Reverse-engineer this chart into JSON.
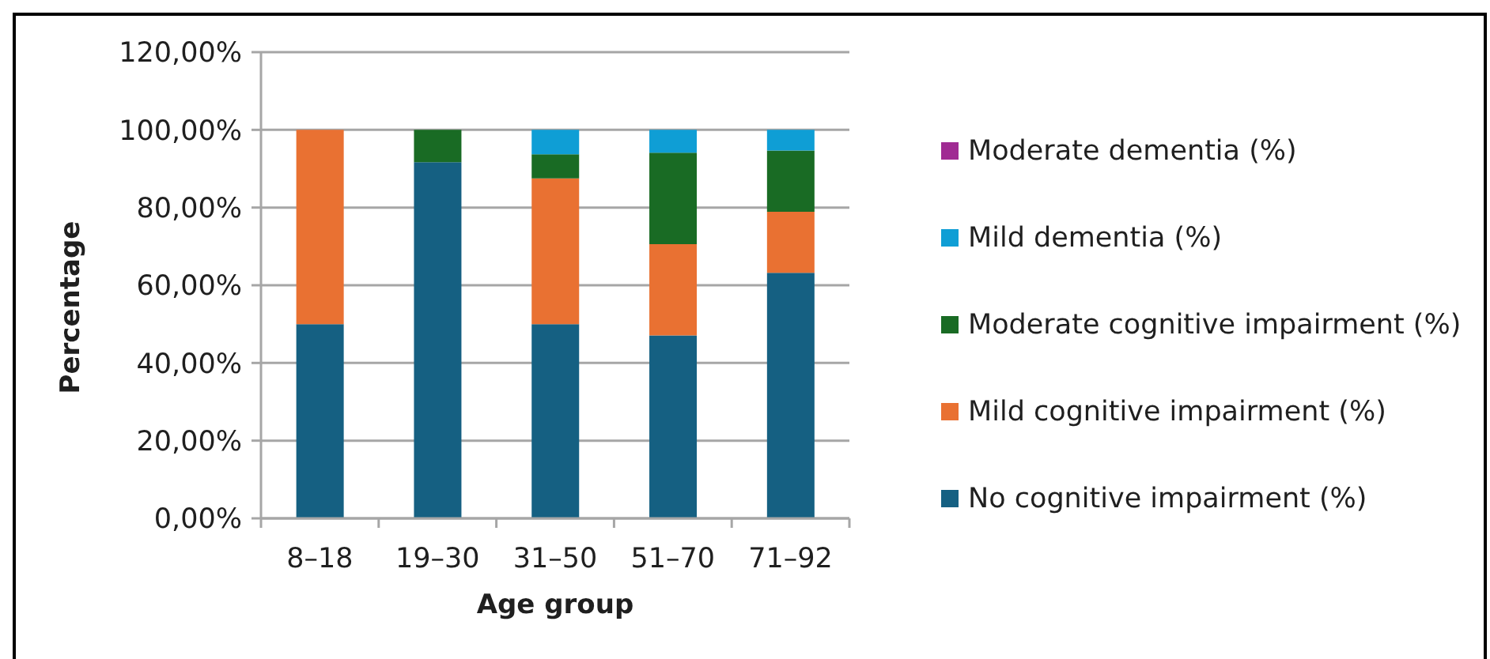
{
  "chart_data": {
    "type": "bar",
    "stacked": true,
    "xlabel": "Age group",
    "ylabel": "Percentage",
    "categories": [
      "8–18",
      "19–30",
      "31–50",
      "51–70",
      "71–92"
    ],
    "series": [
      {
        "name": "No cognitive impairment (%)",
        "color": "#156082",
        "values": [
          50,
          91.7,
          50,
          47.1,
          63.2
        ]
      },
      {
        "name": "Mild cognitive impairment (%)",
        "color": "#e97132",
        "values": [
          50,
          0,
          37.5,
          23.5,
          15.7
        ]
      },
      {
        "name": "Moderate cognitive impairment (%)",
        "color": "#196b24",
        "values": [
          0,
          8.3,
          6.2,
          23.5,
          15.8
        ]
      },
      {
        "name": "Mild dementia (%)",
        "color": "#0f9ed5",
        "values": [
          0,
          0,
          6.3,
          5.9,
          5.3
        ]
      },
      {
        "name": "Moderate dementia (%)",
        "color": "#a02b93",
        "values": [
          0,
          0,
          0,
          0,
          0
        ]
      }
    ],
    "ylim": [
      0,
      120
    ],
    "yticks": [
      {
        "value": 0,
        "label": "0,00%"
      },
      {
        "value": 20,
        "label": "20,00%"
      },
      {
        "value": 40,
        "label": "40,00%"
      },
      {
        "value": 60,
        "label": "60,00%"
      },
      {
        "value": 80,
        "label": "80,00%"
      },
      {
        "value": 100,
        "label": "100,00%"
      },
      {
        "value": 120,
        "label": "120,00%"
      }
    ],
    "grid": "y",
    "legend": "right"
  }
}
